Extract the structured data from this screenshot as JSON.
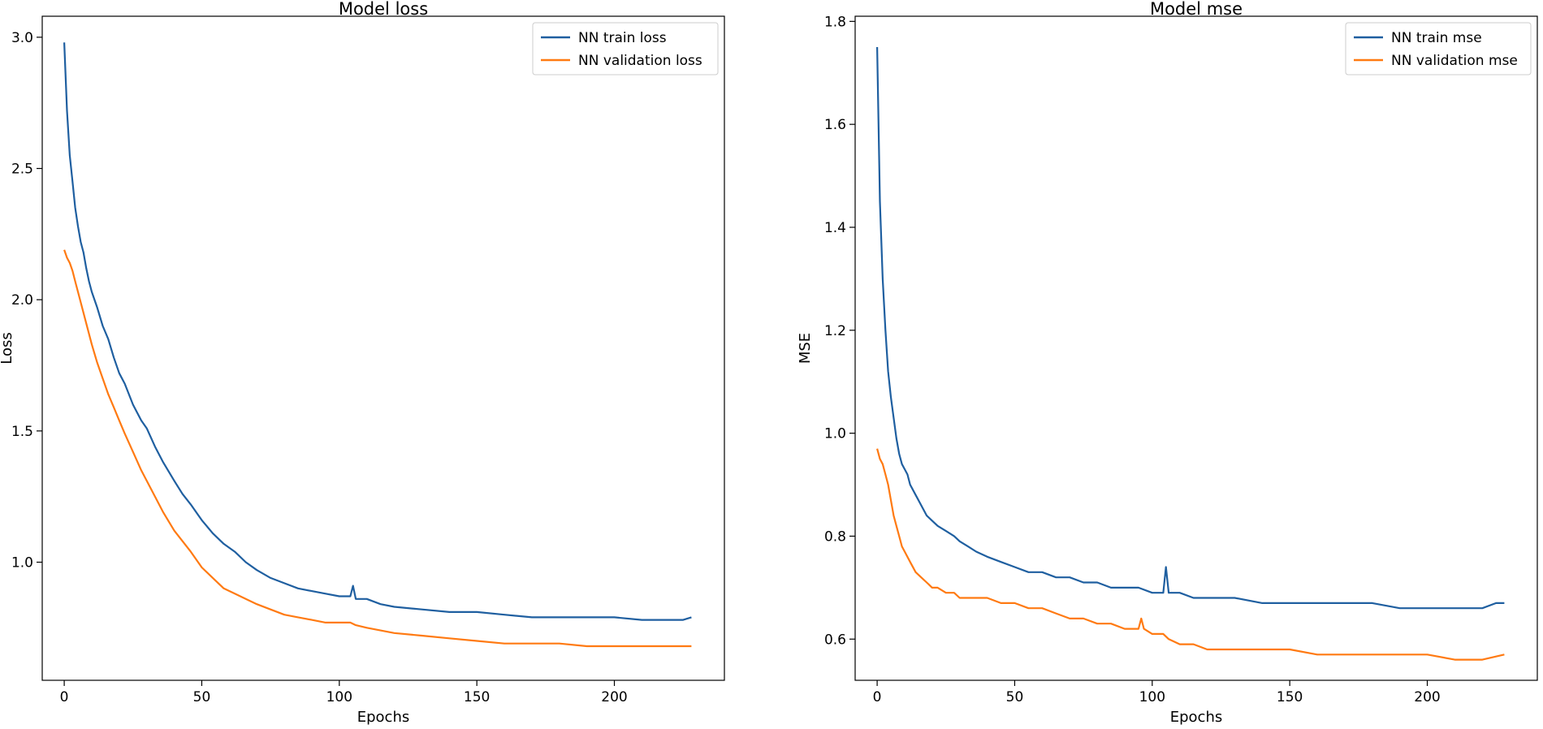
{
  "chart_data": [
    {
      "type": "line",
      "title": "Model loss",
      "xlabel": "Epochs",
      "ylabel": "Loss",
      "xlim": [
        -8,
        240
      ],
      "ylim": [
        0.55,
        3.08
      ],
      "xticks": [
        0,
        50,
        100,
        150,
        200
      ],
      "xtick_labels": [
        "0",
        "50",
        "100",
        "150",
        "200"
      ],
      "yticks": [
        1.0,
        1.5,
        2.0,
        2.5,
        3.0
      ],
      "ytick_labels": [
        "1.0",
        "1.5",
        "2.0",
        "2.5",
        "3.0"
      ],
      "grid": false,
      "legend_position": "upper right",
      "series": [
        {
          "name": "NN train loss",
          "color": "#1f5fa0",
          "x": [
            0,
            1,
            2,
            3,
            4,
            5,
            6,
            7,
            8,
            9,
            10,
            12,
            14,
            16,
            18,
            20,
            22,
            25,
            28,
            30,
            33,
            36,
            40,
            43,
            46,
            50,
            54,
            58,
            62,
            66,
            70,
            75,
            80,
            85,
            90,
            95,
            100,
            104,
            105,
            106,
            110,
            115,
            120,
            130,
            140,
            150,
            160,
            170,
            180,
            190,
            200,
            210,
            215,
            220,
            225,
            228
          ],
          "y": [
            2.98,
            2.72,
            2.55,
            2.45,
            2.35,
            2.28,
            2.22,
            2.18,
            2.12,
            2.07,
            2.03,
            1.97,
            1.9,
            1.85,
            1.78,
            1.72,
            1.68,
            1.6,
            1.54,
            1.51,
            1.44,
            1.38,
            1.31,
            1.26,
            1.22,
            1.16,
            1.11,
            1.07,
            1.04,
            1.0,
            0.97,
            0.94,
            0.92,
            0.9,
            0.89,
            0.88,
            0.87,
            0.87,
            0.91,
            0.86,
            0.86,
            0.84,
            0.83,
            0.82,
            0.81,
            0.81,
            0.8,
            0.79,
            0.79,
            0.79,
            0.79,
            0.78,
            0.78,
            0.78,
            0.78,
            0.79
          ]
        },
        {
          "name": "NN validation loss",
          "color": "#ff7a12",
          "x": [
            0,
            1,
            2,
            3,
            4,
            5,
            6,
            8,
            10,
            12,
            14,
            16,
            18,
            20,
            22,
            25,
            28,
            30,
            33,
            36,
            40,
            43,
            46,
            50,
            54,
            58,
            62,
            66,
            70,
            75,
            80,
            85,
            90,
            95,
            100,
            104,
            106,
            110,
            115,
            120,
            130,
            140,
            150,
            160,
            170,
            180,
            190,
            200,
            210,
            220,
            228
          ],
          "y": [
            2.19,
            2.16,
            2.14,
            2.11,
            2.07,
            2.03,
            1.99,
            1.91,
            1.83,
            1.76,
            1.7,
            1.64,
            1.59,
            1.54,
            1.49,
            1.42,
            1.35,
            1.31,
            1.25,
            1.19,
            1.12,
            1.08,
            1.04,
            0.98,
            0.94,
            0.9,
            0.88,
            0.86,
            0.84,
            0.82,
            0.8,
            0.79,
            0.78,
            0.77,
            0.77,
            0.77,
            0.76,
            0.75,
            0.74,
            0.73,
            0.72,
            0.71,
            0.7,
            0.69,
            0.69,
            0.69,
            0.68,
            0.68,
            0.68,
            0.68,
            0.68
          ]
        }
      ]
    },
    {
      "type": "line",
      "title": "Model mse",
      "xlabel": "Epochs",
      "ylabel": "MSE",
      "xlim": [
        -8,
        240
      ],
      "ylim": [
        0.52,
        1.81
      ],
      "xticks": [
        0,
        50,
        100,
        150,
        200
      ],
      "xtick_labels": [
        "0",
        "50",
        "100",
        "150",
        "200"
      ],
      "yticks": [
        0.6,
        0.8,
        1.0,
        1.2,
        1.4,
        1.6,
        1.8
      ],
      "ytick_labels": [
        "0.6",
        "0.8",
        "1.0",
        "1.2",
        "1.4",
        "1.6",
        "1.8"
      ],
      "grid": false,
      "legend_position": "upper right",
      "series": [
        {
          "name": "NN train mse",
          "color": "#1f5fa0",
          "x": [
            0,
            1,
            2,
            3,
            4,
            5,
            6,
            7,
            8,
            9,
            10,
            11,
            12,
            14,
            16,
            18,
            20,
            22,
            25,
            28,
            30,
            33,
            36,
            40,
            45,
            50,
            55,
            60,
            65,
            70,
            75,
            80,
            85,
            90,
            95,
            100,
            104,
            105,
            106,
            110,
            115,
            120,
            125,
            130,
            140,
            150,
            160,
            170,
            180,
            190,
            200,
            210,
            220,
            225,
            228
          ],
          "y": [
            1.75,
            1.45,
            1.3,
            1.2,
            1.12,
            1.07,
            1.03,
            0.99,
            0.96,
            0.94,
            0.93,
            0.92,
            0.9,
            0.88,
            0.86,
            0.84,
            0.83,
            0.82,
            0.81,
            0.8,
            0.79,
            0.78,
            0.77,
            0.76,
            0.75,
            0.74,
            0.73,
            0.73,
            0.72,
            0.72,
            0.71,
            0.71,
            0.7,
            0.7,
            0.7,
            0.69,
            0.69,
            0.74,
            0.69,
            0.69,
            0.68,
            0.68,
            0.68,
            0.68,
            0.67,
            0.67,
            0.67,
            0.67,
            0.67,
            0.66,
            0.66,
            0.66,
            0.66,
            0.67,
            0.67
          ]
        },
        {
          "name": "NN validation mse",
          "color": "#ff7a12",
          "x": [
            0,
            1,
            2,
            3,
            4,
            5,
            6,
            7,
            8,
            9,
            10,
            12,
            14,
            16,
            18,
            20,
            22,
            25,
            28,
            30,
            33,
            36,
            40,
            45,
            50,
            55,
            60,
            65,
            70,
            75,
            80,
            85,
            90,
            95,
            96,
            97,
            100,
            104,
            106,
            110,
            115,
            120,
            130,
            140,
            150,
            160,
            170,
            180,
            190,
            200,
            210,
            220,
            228
          ],
          "y": [
            0.97,
            0.95,
            0.94,
            0.92,
            0.9,
            0.87,
            0.84,
            0.82,
            0.8,
            0.78,
            0.77,
            0.75,
            0.73,
            0.72,
            0.71,
            0.7,
            0.7,
            0.69,
            0.69,
            0.68,
            0.68,
            0.68,
            0.68,
            0.67,
            0.67,
            0.66,
            0.66,
            0.65,
            0.64,
            0.64,
            0.63,
            0.63,
            0.62,
            0.62,
            0.64,
            0.62,
            0.61,
            0.61,
            0.6,
            0.59,
            0.59,
            0.58,
            0.58,
            0.58,
            0.58,
            0.57,
            0.57,
            0.57,
            0.57,
            0.57,
            0.56,
            0.56,
            0.57
          ]
        }
      ]
    }
  ]
}
